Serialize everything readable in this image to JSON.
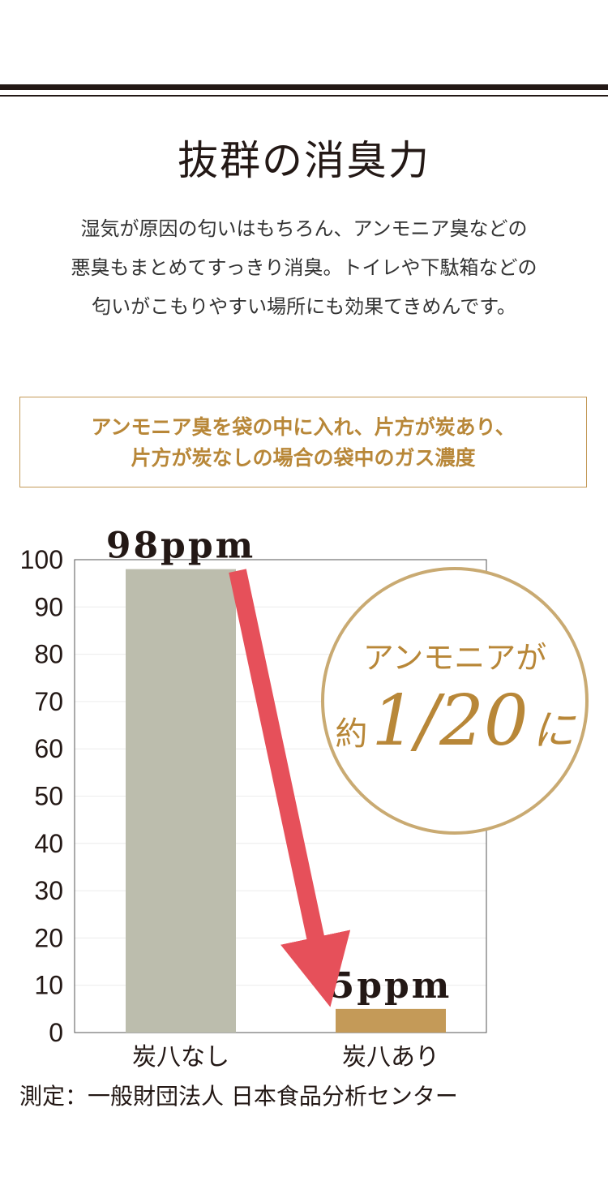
{
  "heading": {
    "title": "抜群の消臭力",
    "lines": [
      "湿気が原因の匂いはもちろん、アンモニア臭などの",
      "悪臭もまとめてすっきり消臭。トイレや下駄箱などの",
      "匂いがこもりやすい場所にも効果てきめんです。"
    ]
  },
  "notice": {
    "lines": [
      "アンモニア臭を袋の中に入れ、片方が炭あり、",
      "片方が炭なしの場合の袋中のガス濃度"
    ]
  },
  "colors": {
    "bar_without": "#bcbdad",
    "bar_with": "#c49a58",
    "arrow": "#e6505a",
    "badge_ring": "#c9aa72",
    "badge_text": "#b88738"
  },
  "chart_data": {
    "type": "bar",
    "categories": [
      "炭八なし",
      "炭八あり"
    ],
    "values": [
      98,
      5
    ],
    "data_labels": [
      "98ppm",
      "5ppm"
    ],
    "yticks": [
      0,
      10,
      20,
      30,
      40,
      50,
      60,
      70,
      80,
      90,
      100
    ],
    "ylim": [
      0,
      100
    ],
    "grid": true,
    "badge": {
      "line1": "アンモニアが",
      "prefix": "約",
      "ratio": "1/20",
      "suffix": "に"
    }
  },
  "footer": {
    "source": "測定：一般財団法人 日本食品分析センター"
  }
}
